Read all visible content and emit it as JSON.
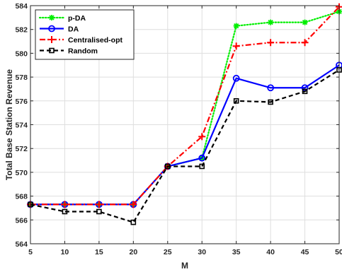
{
  "chart_data": {
    "type": "line",
    "xlabel": "M",
    "ylabel": "Total Base Station Revenue",
    "x": [
      5,
      10,
      15,
      20,
      25,
      30,
      35,
      40,
      45,
      50
    ],
    "xlim": [
      5,
      50
    ],
    "ylim": [
      564,
      584
    ],
    "xticks": [
      "5",
      "10",
      "15",
      "20",
      "25",
      "30",
      "35",
      "40",
      "45",
      "50"
    ],
    "yticks": [
      "564",
      "566",
      "568",
      "570",
      "572",
      "574",
      "576",
      "578",
      "580",
      "582",
      "584"
    ],
    "grid": true,
    "legend_position": "top-left",
    "series": [
      {
        "name": "p-DA",
        "color": "#00ee00",
        "line_style": "dotted",
        "marker": "asterisk",
        "values": [
          567.3,
          567.3,
          567.3,
          567.3,
          570.5,
          571.2,
          582.3,
          582.6,
          582.6,
          583.5
        ]
      },
      {
        "name": "DA",
        "color": "#0000ff",
        "line_style": "solid",
        "marker": "circle",
        "values": [
          567.3,
          567.3,
          567.3,
          567.3,
          570.5,
          571.2,
          577.9,
          577.1,
          577.1,
          579.0
        ]
      },
      {
        "name": "Centralised-opt",
        "color": "#ff0000",
        "line_style": "dashdot",
        "marker": "plus",
        "values": [
          567.3,
          567.3,
          567.3,
          567.3,
          570.5,
          573.0,
          580.6,
          580.9,
          580.9,
          583.9
        ]
      },
      {
        "name": "Random",
        "color": "#000000",
        "line_style": "dashed",
        "marker": "square",
        "values": [
          567.3,
          566.7,
          566.7,
          565.8,
          570.5,
          570.5,
          576.0,
          575.9,
          576.8,
          578.6
        ]
      }
    ]
  }
}
